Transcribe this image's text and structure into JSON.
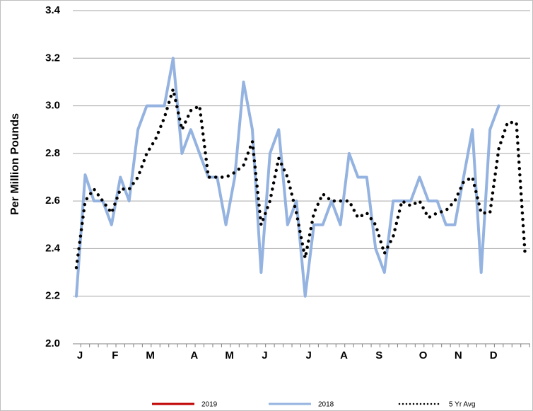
{
  "chart_data": {
    "type": "line",
    "y_label": "Per Million Pounds",
    "categories": [
      "J",
      null,
      null,
      null,
      "F",
      null,
      null,
      null,
      "M",
      null,
      null,
      null,
      null,
      "A",
      null,
      null,
      null,
      "M",
      null,
      null,
      null,
      "J",
      null,
      null,
      null,
      null,
      "J",
      null,
      null,
      null,
      "A",
      null,
      null,
      null,
      "S",
      null,
      null,
      null,
      null,
      "O",
      null,
      null,
      null,
      "N",
      null,
      null,
      null,
      "D",
      null,
      null,
      null,
      null
    ],
    "series": [
      {
        "name": "2019",
        "color": "#c00000",
        "style": "solid",
        "values": [
          null,
          null,
          null,
          null,
          null,
          null,
          null,
          null,
          null,
          null,
          null,
          null,
          null,
          null,
          null,
          null,
          null,
          null,
          null,
          null,
          null,
          null,
          null,
          null,
          null,
          null,
          null,
          null,
          null,
          null,
          null,
          null,
          null,
          null,
          null,
          null,
          null,
          null,
          null,
          null,
          null,
          null,
          null,
          null,
          null,
          null,
          null,
          null,
          null,
          null,
          null,
          null
        ]
      },
      {
        "name": "2018",
        "color": "#95b3e0",
        "style": "solid",
        "values": [
          2.2,
          2.71,
          2.6,
          2.6,
          2.5,
          2.7,
          2.6,
          2.9,
          3.0,
          3.0,
          3.0,
          3.2,
          2.8,
          2.9,
          2.8,
          2.7,
          2.7,
          2.5,
          2.7,
          3.1,
          2.9,
          2.3,
          2.8,
          2.9,
          2.5,
          2.6,
          2.2,
          2.5,
          2.5,
          2.6,
          2.5,
          2.8,
          2.7,
          2.7,
          2.4,
          2.3,
          2.6,
          2.6,
          2.6,
          2.7,
          2.6,
          2.6,
          2.5,
          2.5,
          2.7,
          2.9,
          2.3,
          2.9,
          3.0,
          null,
          null,
          null
        ]
      },
      {
        "name": "5 Yr Avg",
        "color": "#000000",
        "style": "dotted",
        "values": [
          2.32,
          2.6,
          2.65,
          2.6,
          2.55,
          2.65,
          2.65,
          2.7,
          2.8,
          2.86,
          2.95,
          3.07,
          2.9,
          2.98,
          3.0,
          2.7,
          2.7,
          2.7,
          2.72,
          2.75,
          2.85,
          2.5,
          2.6,
          2.78,
          2.7,
          2.55,
          2.36,
          2.55,
          2.63,
          2.6,
          2.6,
          2.6,
          2.53,
          2.55,
          2.5,
          2.38,
          2.45,
          2.6,
          2.58,
          2.6,
          2.53,
          2.55,
          2.56,
          2.6,
          2.68,
          2.7,
          2.55,
          2.55,
          2.82,
          2.93,
          2.93,
          2.37
        ]
      }
    ],
    "ylim": [
      2.0,
      3.4
    ],
    "yticks": [
      {
        "value": 2,
        "label": "2.0"
      },
      2.2,
      2.4,
      2.6,
      2.8,
      {
        "value": 3,
        "label": "3.0"
      },
      3.2,
      3.4
    ],
    "grid": true,
    "legend": "bottom"
  }
}
